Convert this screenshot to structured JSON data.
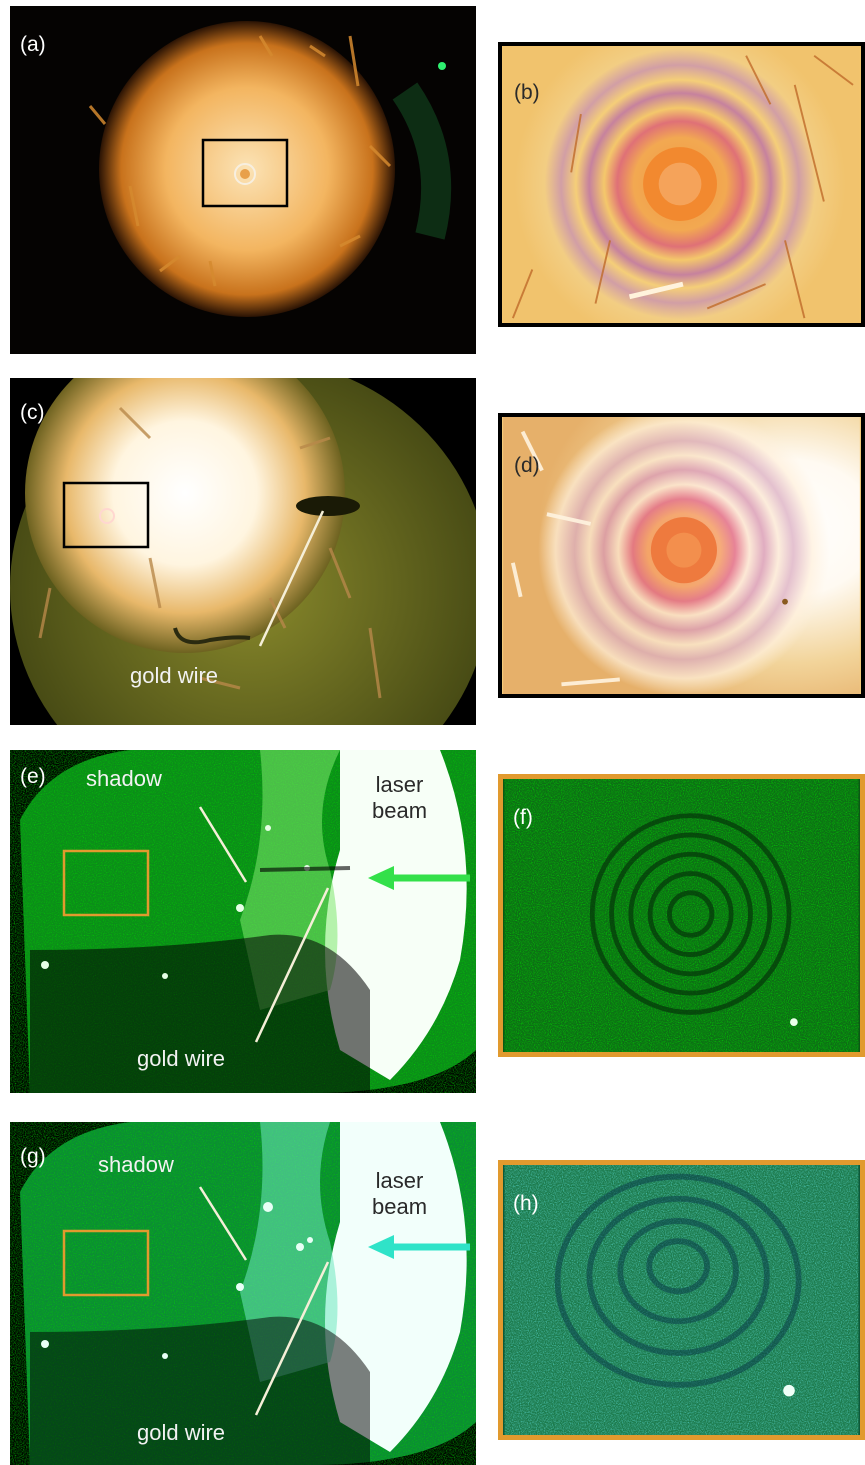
{
  "panels": {
    "a": {
      "label": "(a)"
    },
    "b": {
      "label": "(b)"
    },
    "c": {
      "label": "(c)",
      "wire_label": "gold wire"
    },
    "d": {
      "label": "(d)"
    },
    "e": {
      "label": "(e)",
      "shadow_label": "shadow",
      "laser_line1": "laser",
      "laser_line2": "beam",
      "wire_label": "gold wire"
    },
    "f": {
      "label": "(f)"
    },
    "g": {
      "label": "(g)",
      "shadow_label": "shadow",
      "laser_line1": "laser",
      "laser_line2": "beam",
      "wire_label": "gold wire"
    },
    "h": {
      "label": "(h)"
    }
  },
  "colors": {
    "inset_frame_black": "#000000",
    "inset_frame_orange": "#e19a2e",
    "arrow_green": "#33e04a",
    "arrow_cyan": "#2fe3c8"
  }
}
